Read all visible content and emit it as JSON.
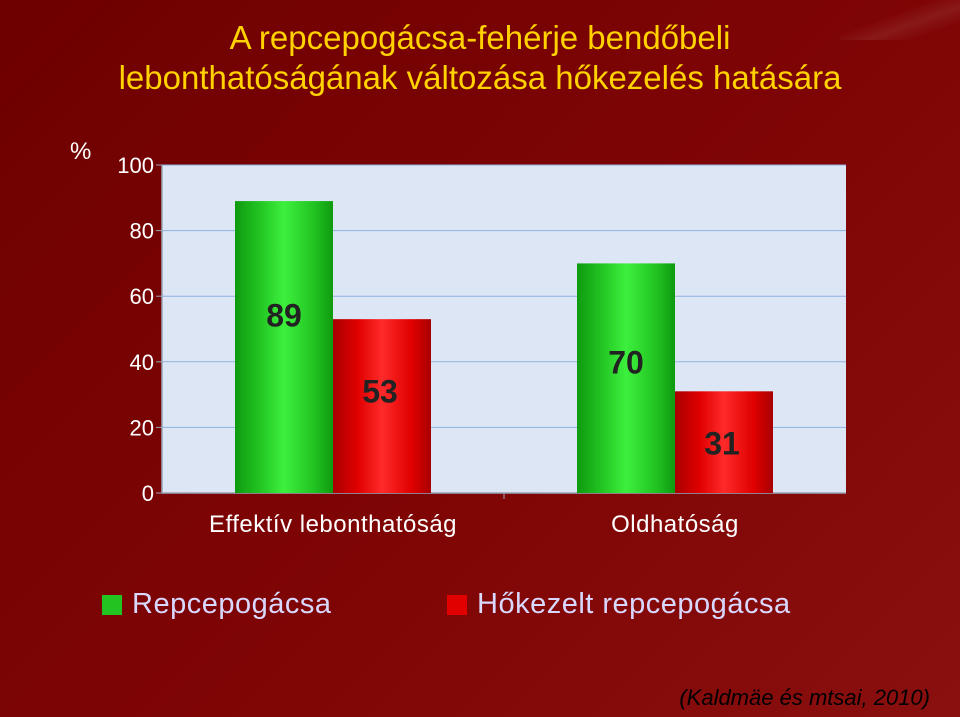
{
  "title_line1": "A repcepogácsa-fehérje bendőbeli",
  "title_line2": "lebonthatóságának változása hőkezelés hatására",
  "unit_label": "%",
  "source": "(Kaldmäe és mtsai, 2010)",
  "colors": {
    "background": "#7a0000",
    "title": "#ffd200",
    "plot_area": "#dde6f5",
    "series_green": "#22c422",
    "series_red": "#e00000",
    "legend_text": "#d9d9ff"
  },
  "chart_data": {
    "type": "bar",
    "categories": [
      "Effektív lebonthatóság",
      "Oldhatóság"
    ],
    "series": [
      {
        "name": "Repcepogácsa",
        "values": [
          89,
          70
        ],
        "color": "#22c422",
        "labels": [
          "89",
          "70"
        ]
      },
      {
        "name": "Hőkezelt repcepogácsa",
        "values": [
          53,
          31
        ],
        "color": "#e00000",
        "labels": [
          "53",
          "31"
        ]
      }
    ],
    "ylim": [
      0,
      100
    ],
    "yticks": [
      0,
      20,
      40,
      60,
      80,
      100
    ],
    "ytick_labels": [
      "0",
      "20",
      "40",
      "60",
      "80",
      "100"
    ],
    "grid": true,
    "legend_position": "bottom"
  }
}
